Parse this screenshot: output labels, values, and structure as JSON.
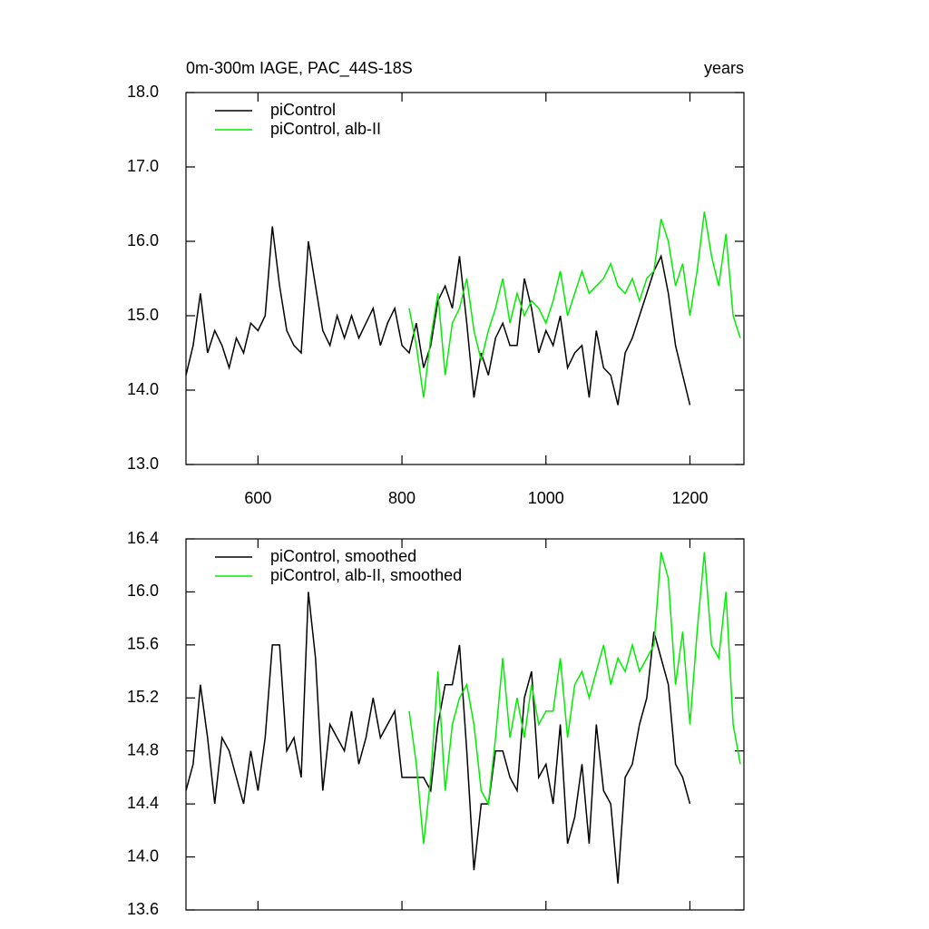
{
  "chart_data": [
    {
      "type": "line",
      "title": "0m-300m IAGE, PAC_44S-18S",
      "right_title": "years",
      "xlim": [
        500,
        1275
      ],
      "xticks": [
        600,
        800,
        1000,
        1200
      ],
      "xtick_labels": true,
      "ylim": [
        13,
        18
      ],
      "yticks": [
        {
          "value": 13,
          "label": "13.0"
        },
        {
          "value": 14,
          "label": "14.0"
        },
        {
          "value": 15,
          "label": "15.0"
        },
        {
          "value": 16,
          "label": "16.0"
        },
        {
          "value": 17,
          "label": "17.0"
        },
        {
          "value": 18,
          "label": "18.0"
        }
      ],
      "legend": "upper left",
      "series": [
        {
          "name": "piControl",
          "color": "#000000",
          "x": [
            500,
            510,
            520,
            530,
            540,
            550,
            560,
            570,
            580,
            590,
            600,
            610,
            620,
            630,
            640,
            650,
            660,
            670,
            680,
            690,
            700,
            710,
            720,
            730,
            740,
            750,
            760,
            770,
            780,
            790,
            800,
            810,
            820,
            830,
            840,
            850,
            860,
            870,
            880,
            890,
            900,
            910,
            920,
            930,
            940,
            950,
            960,
            970,
            980,
            990,
            1000,
            1010,
            1020,
            1030,
            1040,
            1050,
            1060,
            1070,
            1080,
            1090,
            1100,
            1110,
            1120,
            1130,
            1140,
            1150,
            1160,
            1170,
            1180,
            1190,
            1200
          ],
          "values": [
            14.2,
            14.6,
            15.3,
            14.5,
            14.8,
            14.6,
            14.3,
            14.7,
            14.5,
            14.9,
            14.8,
            15.0,
            16.2,
            15.4,
            14.8,
            14.6,
            14.5,
            16.0,
            15.4,
            14.8,
            14.6,
            15.0,
            14.7,
            15.0,
            14.7,
            14.9,
            15.1,
            14.6,
            14.9,
            15.1,
            14.6,
            14.5,
            14.9,
            14.3,
            14.6,
            15.2,
            15.4,
            15.1,
            15.8,
            14.9,
            13.9,
            14.5,
            14.2,
            14.7,
            14.9,
            14.6,
            14.6,
            15.5,
            15.1,
            14.5,
            14.8,
            14.6,
            15.0,
            14.3,
            14.5,
            14.6,
            13.9,
            14.8,
            14.3,
            14.2,
            13.8,
            14.5,
            14.7,
            15.0,
            15.3,
            15.6,
            15.8,
            15.3,
            14.6,
            14.2,
            13.8
          ]
        },
        {
          "name": "piControl, alb-II",
          "color": "#00ee00",
          "x": [
            810,
            820,
            830,
            840,
            850,
            860,
            870,
            880,
            890,
            900,
            910,
            920,
            930,
            940,
            950,
            960,
            970,
            980,
            990,
            1000,
            1010,
            1020,
            1030,
            1040,
            1050,
            1060,
            1070,
            1080,
            1090,
            1100,
            1110,
            1120,
            1130,
            1140,
            1150,
            1160,
            1170,
            1180,
            1190,
            1200,
            1210,
            1220,
            1230,
            1240,
            1250,
            1260,
            1270
          ],
          "values": [
            15.1,
            14.6,
            13.9,
            14.7,
            15.3,
            14.2,
            14.9,
            15.1,
            15.5,
            14.8,
            14.4,
            14.8,
            15.1,
            15.5,
            14.9,
            15.3,
            15.0,
            15.2,
            15.1,
            14.9,
            15.2,
            15.6,
            15.0,
            15.3,
            15.6,
            15.3,
            15.4,
            15.5,
            15.7,
            15.4,
            15.3,
            15.5,
            15.2,
            15.5,
            15.6,
            16.3,
            16.0,
            15.4,
            15.7,
            15.0,
            15.6,
            16.4,
            15.8,
            15.4,
            16.1,
            15.0,
            14.7
          ]
        }
      ]
    },
    {
      "type": "line",
      "xlim": [
        500,
        1275
      ],
      "xticks": [
        600,
        800,
        1000,
        1200
      ],
      "xtick_labels": false,
      "ylim": [
        13.6,
        16.4
      ],
      "yticks": [
        13.6,
        {
          "value": 14,
          "label": "14.0"
        },
        14.4,
        14.8,
        15.2,
        15.6,
        {
          "value": 16,
          "label": "16.0"
        },
        16.4
      ],
      "legend": "upper left",
      "series": [
        {
          "name": "piControl, smoothed",
          "color": "#000000",
          "x": [
            500,
            510,
            520,
            530,
            540,
            550,
            560,
            570,
            580,
            590,
            600,
            610,
            620,
            630,
            640,
            650,
            660,
            670,
            680,
            690,
            700,
            710,
            720,
            730,
            740,
            750,
            760,
            770,
            780,
            790,
            800,
            810,
            820,
            830,
            840,
            850,
            860,
            870,
            880,
            890,
            900,
            910,
            920,
            930,
            940,
            950,
            960,
            970,
            980,
            990,
            1000,
            1010,
            1020,
            1030,
            1040,
            1050,
            1060,
            1070,
            1080,
            1090,
            1100,
            1110,
            1120,
            1130,
            1140,
            1150,
            1160,
            1170,
            1180,
            1190,
            1200
          ],
          "values": [
            14.5,
            14.7,
            15.3,
            14.9,
            14.4,
            14.9,
            14.8,
            14.6,
            14.4,
            14.8,
            14.5,
            14.9,
            15.6,
            15.6,
            14.8,
            14.9,
            14.6,
            16.0,
            15.5,
            14.5,
            15.0,
            14.9,
            14.8,
            15.1,
            14.7,
            14.9,
            15.2,
            14.9,
            15.0,
            15.1,
            14.6,
            14.6,
            14.6,
            14.6,
            14.5,
            15.0,
            15.3,
            15.3,
            15.6,
            14.8,
            13.9,
            14.4,
            14.4,
            14.8,
            14.8,
            14.6,
            14.5,
            15.2,
            15.4,
            14.6,
            14.7,
            14.4,
            15.0,
            14.1,
            14.3,
            14.7,
            14.1,
            15.0,
            14.5,
            14.4,
            13.8,
            14.6,
            14.7,
            15.0,
            15.2,
            15.7,
            15.5,
            15.3,
            14.7,
            14.6,
            14.4
          ]
        },
        {
          "name": "piControl, alb-II, smoothed",
          "color": "#00ee00",
          "x": [
            810,
            820,
            830,
            840,
            850,
            860,
            870,
            880,
            890,
            900,
            910,
            920,
            930,
            940,
            950,
            960,
            970,
            980,
            990,
            1000,
            1010,
            1020,
            1030,
            1040,
            1050,
            1060,
            1070,
            1080,
            1090,
            1100,
            1110,
            1120,
            1130,
            1140,
            1150,
            1160,
            1170,
            1180,
            1190,
            1200,
            1210,
            1220,
            1230,
            1240,
            1250,
            1260,
            1270
          ],
          "values": [
            15.1,
            14.7,
            14.1,
            14.6,
            15.4,
            14.5,
            15.0,
            15.2,
            15.3,
            15.0,
            14.5,
            14.4,
            14.9,
            15.5,
            14.9,
            15.2,
            14.9,
            15.3,
            15.0,
            15.1,
            15.1,
            15.5,
            14.9,
            15.3,
            15.4,
            15.2,
            15.4,
            15.6,
            15.3,
            15.5,
            15.4,
            15.6,
            15.4,
            15.5,
            15.6,
            16.3,
            16.1,
            15.3,
            15.7,
            15.0,
            15.7,
            16.3,
            15.6,
            15.5,
            16.0,
            15.0,
            14.7
          ]
        }
      ]
    }
  ]
}
